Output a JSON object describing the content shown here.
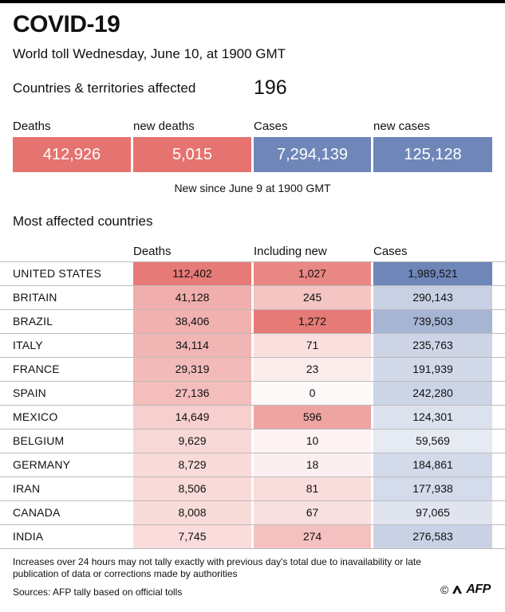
{
  "title": "COVID-19",
  "subtitle": "World toll Wednesday, June 10, at 1900 GMT",
  "countries": {
    "label": "Countries & territories affected",
    "value": "196"
  },
  "summary": [
    {
      "label": "Deaths",
      "value": "412,926",
      "color": "#E5736F"
    },
    {
      "label": "new deaths",
      "value": "5,015",
      "color": "#E5736F"
    },
    {
      "label": "Cases",
      "value": "7,294,139",
      "color": "#6E86B8"
    },
    {
      "label": "new cases",
      "value": "125,128",
      "color": "#6E86B8"
    }
  ],
  "summary_note": "New since June 9 at 1900 GMT",
  "section_title": "Most affected countries",
  "chart_data": {
    "type": "table",
    "columns": [
      "Deaths",
      "Including new",
      "Cases"
    ],
    "rows": [
      {
        "country": "UNITED STATES",
        "deaths": 112402,
        "new": 1027,
        "cases": 1989521
      },
      {
        "country": "BRITAIN",
        "deaths": 41128,
        "new": 245,
        "cases": 290143
      },
      {
        "country": "BRAZIL",
        "deaths": 38406,
        "new": 1272,
        "cases": 739503
      },
      {
        "country": "ITALY",
        "deaths": 34114,
        "new": 71,
        "cases": 235763
      },
      {
        "country": "FRANCE",
        "deaths": 29319,
        "new": 23,
        "cases": 191939
      },
      {
        "country": "SPAIN",
        "deaths": 27136,
        "new": 0,
        "cases": 242280
      },
      {
        "country": "MEXICO",
        "deaths": 14649,
        "new": 596,
        "cases": 124301
      },
      {
        "country": "BELGIUM",
        "deaths": 9629,
        "new": 10,
        "cases": 59569
      },
      {
        "country": "GERMANY",
        "deaths": 8729,
        "new": 18,
        "cases": 184861
      },
      {
        "country": "IRAN",
        "deaths": 8506,
        "new": 81,
        "cases": 177938
      },
      {
        "country": "CANADA",
        "deaths": 8008,
        "new": 67,
        "cases": 97065
      },
      {
        "country": "INDIA",
        "deaths": 7745,
        "new": 274,
        "cases": 276583
      }
    ],
    "colors": {
      "deaths": "#E5736F",
      "new": "#E5736F",
      "cases": "#6E86B8"
    }
  },
  "footnote": "Increases over 24 hours may not tally exactly with previous day's total due to inavailability or late publication of data or corrections made by authorities",
  "source": "Sources: AFP tally based on official tolls",
  "credit": {
    "symbol": "©",
    "name": "AFP"
  }
}
